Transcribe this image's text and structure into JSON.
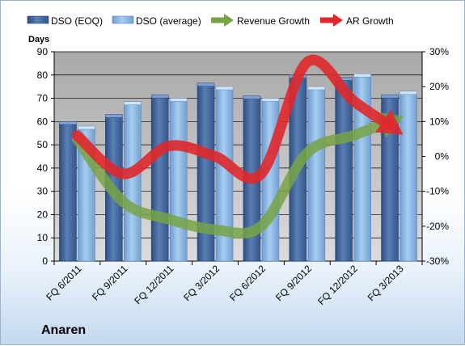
{
  "company": "Anaren",
  "chart_data": {
    "type": "bar",
    "categories": [
      "FQ 6/2011",
      "FQ 9/2011",
      "FQ 12/2011",
      "FQ 3/2012",
      "FQ 6/2012",
      "FQ 9/2012",
      "FQ 12/2012",
      "FQ 3/2013"
    ],
    "ylabel": "Days",
    "ylim": [
      0,
      90
    ],
    "yticks": [
      0,
      10,
      20,
      30,
      40,
      50,
      60,
      70,
      80,
      90
    ],
    "y2lim": [
      -30,
      30
    ],
    "y2ticks": [
      "-30%",
      "-20%",
      "-10%",
      "0%",
      "10%",
      "20%",
      "30%"
    ],
    "grid": true,
    "legend_position": "top",
    "series": [
      {
        "name": "DSO (EOQ)",
        "type": "bar",
        "axis": "left",
        "color": "#4f72a8",
        "values": [
          59,
          62,
          70.5,
          75.5,
          70,
          79,
          78,
          70.5
        ]
      },
      {
        "name": "DSO (average)",
        "type": "bar",
        "axis": "left",
        "color": "#8fb8e3",
        "values": [
          57,
          67.5,
          69,
          74,
          69,
          74,
          79.5,
          72
        ]
      },
      {
        "name": "Revenue Growth",
        "type": "arrow-line",
        "axis": "right",
        "color": "#77a345",
        "values": [
          5,
          -13,
          -18,
          -21,
          -20,
          1,
          6,
          11
        ]
      },
      {
        "name": "AR Growth",
        "type": "arrow-line",
        "axis": "right",
        "color": "#e0282b",
        "values": [
          6,
          -5,
          3,
          0,
          -5,
          27,
          16,
          7
        ]
      }
    ]
  }
}
